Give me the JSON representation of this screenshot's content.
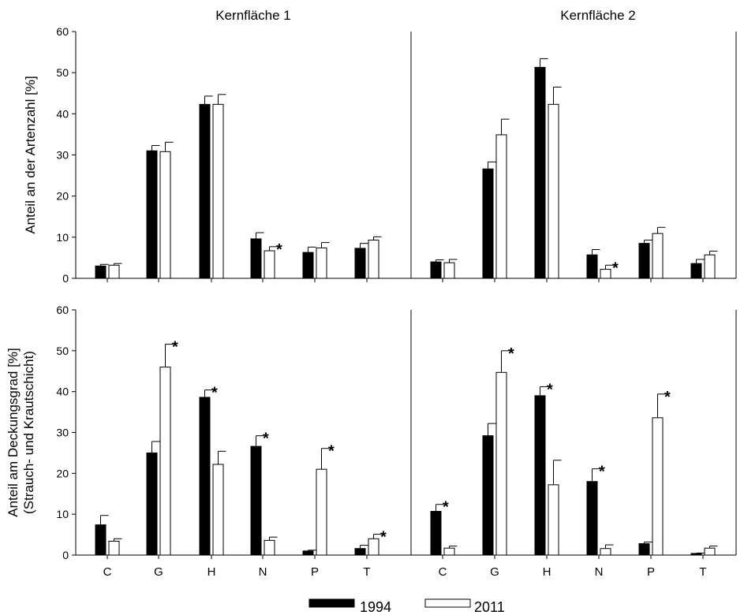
{
  "chart_data": [
    {
      "type": "bar",
      "title": "Kernfläche 1",
      "ylabel": "Anteil an der Artenzahl [%]",
      "ylim": [
        0,
        60
      ],
      "yticks": [
        "0",
        "10",
        "20",
        "30",
        "40",
        "50",
        "60"
      ],
      "categories": [
        "C",
        "G",
        "H",
        "N",
        "P",
        "T"
      ],
      "series": [
        {
          "name": "1994",
          "values": [
            3.0,
            31.0,
            42.3,
            9.6,
            6.3,
            7.3
          ],
          "errors": [
            0.4,
            1.3,
            2.0,
            1.5,
            1.3,
            1.2
          ]
        },
        {
          "name": "2011",
          "values": [
            3.2,
            30.8,
            42.3,
            6.7,
            7.4,
            9.3
          ],
          "errors": [
            0.4,
            2.3,
            2.4,
            1.0,
            1.3,
            0.8
          ]
        }
      ],
      "annotations": [
        {
          "category": "N",
          "series": "2011",
          "text": "*"
        }
      ]
    },
    {
      "type": "bar",
      "title": "Kernfläche 2",
      "ylim": [
        0,
        60
      ],
      "categories": [
        "C",
        "G",
        "H",
        "N",
        "P",
        "T"
      ],
      "series": [
        {
          "name": "1994",
          "values": [
            4.0,
            26.6,
            51.3,
            5.7,
            8.5,
            3.6
          ],
          "errors": [
            0.5,
            1.7,
            2.1,
            1.3,
            0.8,
            1.0
          ]
        },
        {
          "name": "2011",
          "values": [
            3.8,
            34.9,
            42.3,
            2.2,
            10.9,
            5.7
          ],
          "errors": [
            0.8,
            3.8,
            4.2,
            1.0,
            1.5,
            0.9
          ]
        }
      ],
      "annotations": [
        {
          "category": "N",
          "series": "2011",
          "text": "*"
        }
      ]
    },
    {
      "type": "bar",
      "ylabel": "Anteil am Deckungsgrad [%]",
      "ylabel2": "(Strauch- und Krautschicht)",
      "ylim": [
        0,
        60
      ],
      "yticks": [
        "0",
        "10",
        "20",
        "30",
        "40",
        "50",
        "60"
      ],
      "categories": [
        "C",
        "G",
        "H",
        "N",
        "P",
        "T"
      ],
      "series": [
        {
          "name": "1994",
          "values": [
            7.4,
            25.0,
            38.6,
            26.6,
            1.0,
            1.6
          ],
          "errors": [
            2.3,
            2.8,
            1.8,
            2.6,
            0.2,
            0.8
          ]
        },
        {
          "name": "2011",
          "values": [
            3.4,
            46.0,
            22.2,
            3.6,
            21.0,
            4.0
          ],
          "errors": [
            0.6,
            5.6,
            3.2,
            0.8,
            5.1,
            1.1
          ]
        }
      ],
      "annotations": [
        {
          "category": "G",
          "series": "2011",
          "text": "*"
        },
        {
          "category": "H",
          "series": "1994",
          "text": "*"
        },
        {
          "category": "N",
          "series": "1994",
          "text": "*"
        },
        {
          "category": "P",
          "series": "2011",
          "text": "*"
        },
        {
          "category": "T",
          "series": "2011",
          "text": "*"
        }
      ]
    },
    {
      "type": "bar",
      "ylim": [
        0,
        60
      ],
      "categories": [
        "C",
        "G",
        "H",
        "N",
        "P",
        "T"
      ],
      "series": [
        {
          "name": "1994",
          "values": [
            10.7,
            29.2,
            39.0,
            18.0,
            2.8,
            0.4
          ],
          "errors": [
            1.7,
            3.0,
            2.2,
            3.1,
            0.4,
            0.1
          ]
        },
        {
          "name": "2011",
          "values": [
            1.7,
            44.7,
            17.2,
            1.6,
            33.6,
            1.7
          ],
          "errors": [
            0.5,
            5.3,
            6.0,
            0.9,
            5.8,
            0.5
          ]
        }
      ],
      "annotations": [
        {
          "category": "C",
          "series": "1994",
          "text": "*"
        },
        {
          "category": "G",
          "series": "2011",
          "text": "*"
        },
        {
          "category": "H",
          "series": "1994",
          "text": "*"
        },
        {
          "category": "N",
          "series": "1994",
          "text": "*"
        },
        {
          "category": "P",
          "series": "2011",
          "text": "*"
        }
      ]
    }
  ],
  "legend": {
    "items": [
      {
        "label": "1994",
        "color": "#000000"
      },
      {
        "label": "2011",
        "color": "#ffffff"
      }
    ],
    "placement": "bottom-center"
  }
}
